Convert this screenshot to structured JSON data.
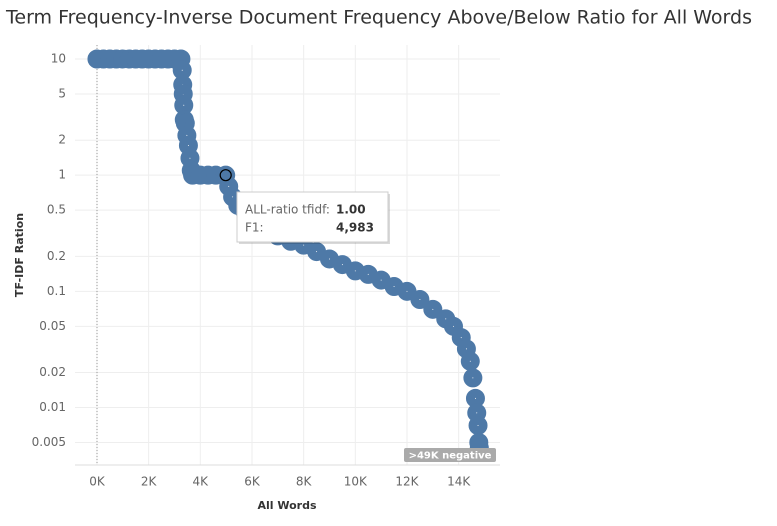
{
  "chart_data": {
    "type": "scatter",
    "title": "Term Frequency-Inverse Document Frequency Above/Below Ratio for All Words",
    "x_label": "All Words",
    "y_label": "TF-IDF Ration",
    "y_scale": "log",
    "grid": true,
    "color": "#4e79a7",
    "xlim": [
      -850,
      15600
    ],
    "ylim": [
      0.0032,
      13.2
    ],
    "xticks": [
      {
        "value": 0,
        "label": "0K"
      },
      {
        "value": 2000,
        "label": "2K"
      },
      {
        "value": 4000,
        "label": "4K"
      },
      {
        "value": 6000,
        "label": "6K"
      },
      {
        "value": 8000,
        "label": "8K"
      },
      {
        "value": 10000,
        "label": "10K"
      },
      {
        "value": 12000,
        "label": "12K"
      },
      {
        "value": 14000,
        "label": "14K"
      }
    ],
    "yticks": [
      10,
      5,
      2,
      1,
      0.5,
      0.2,
      0.1,
      0.05,
      0.02,
      0.01,
      0.005
    ],
    "x": [
      0,
      250,
      500,
      750,
      1000,
      1250,
      1500,
      1750,
      2000,
      2250,
      2500,
      2750,
      3000,
      3250,
      3300,
      3320,
      3340,
      3360,
      3380,
      3420,
      3480,
      3540,
      3600,
      3650,
      3700,
      4000,
      4300,
      4600,
      4983,
      5100,
      5250,
      5450,
      5700,
      6000,
      6500,
      7000,
      7500,
      8000,
      8500,
      9000,
      9500,
      10000,
      10500,
      11000,
      11500,
      12000,
      12500,
      13000,
      13500,
      13800,
      14100,
      14300,
      14450,
      14550,
      14650,
      14700,
      14750,
      14780,
      14800
    ],
    "values": [
      10,
      10,
      10,
      10,
      10,
      10,
      10,
      10,
      10,
      10,
      10,
      10,
      10,
      10,
      8,
      6,
      5,
      4,
      3,
      2.8,
      2.2,
      1.8,
      1.4,
      1.1,
      1,
      1,
      1,
      1,
      1,
      0.8,
      0.65,
      0.55,
      0.5,
      0.42,
      0.35,
      0.3,
      0.27,
      0.25,
      0.22,
      0.19,
      0.17,
      0.15,
      0.14,
      0.125,
      0.11,
      0.1,
      0.085,
      0.07,
      0.058,
      0.05,
      0.04,
      0.032,
      0.025,
      0.018,
      0.012,
      0.009,
      0.007,
      0.005,
      0.0045
    ],
    "highlight_index": 28,
    "tooltip": {
      "rows": [
        {
          "label": "ALL-ratio tfidf:",
          "value": "1.00"
        },
        {
          "label": "F1:",
          "value": "4,983"
        }
      ]
    },
    "annotation": ">49K negative"
  }
}
